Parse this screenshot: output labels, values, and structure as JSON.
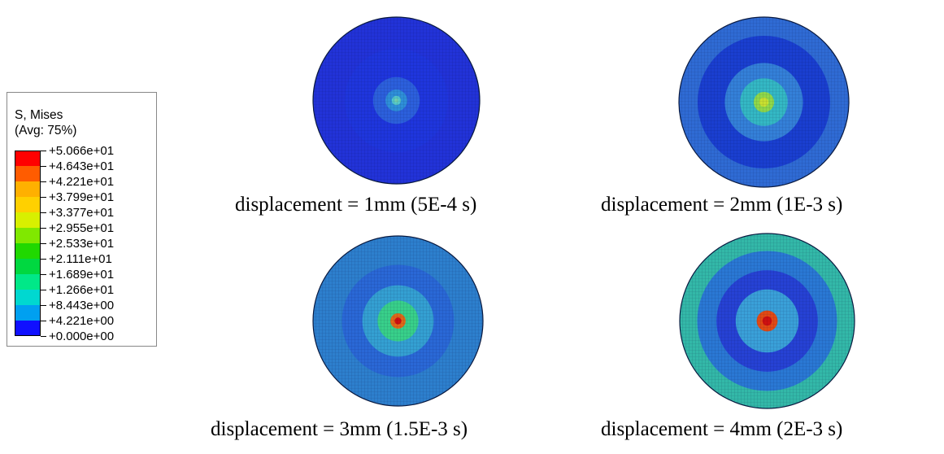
{
  "legend": {
    "title": "S, Mises",
    "subtitle": "(Avg: 75%)",
    "levels": [
      "+5.066e+01",
      "+4.643e+01",
      "+4.221e+01",
      "+3.799e+01",
      "+3.377e+01",
      "+2.955e+01",
      "+2.533e+01",
      "+2.111e+01",
      "+1.689e+01",
      "+1.266e+01",
      "+8.443e+00",
      "+4.221e+00",
      "+0.000e+00"
    ],
    "colors": [
      "#ff0000",
      "#ff5c00",
      "#ffb000",
      "#ffd000",
      "#d8f000",
      "#80e800",
      "#20d800",
      "#00d840",
      "#00e888",
      "#00d8d0",
      "#00a0f0",
      "#0050f0",
      "#1010ff"
    ]
  },
  "plots": [
    {
      "caption": "displacement = 1mm (5E-4 s)",
      "rings": [
        "#2233d8",
        "#1f36dd",
        "#2c60dc",
        "#2e8fd8",
        "#55c8c8"
      ]
    },
    {
      "caption": "displacement = 2mm (1E-3 s)",
      "rings": [
        "#2f6bd4",
        "#1a3fd0",
        "#3480d8",
        "#34b8c4",
        "#8fd84a"
      ]
    },
    {
      "caption": "displacement = 3mm (1.5E-3 s)",
      "rings": [
        "#2d7fcd",
        "#2a68d6",
        "#34a0d2",
        "#38d08a",
        "#e06818"
      ]
    },
    {
      "caption": "displacement = 4mm (2E-3 s)",
      "rings": [
        "#33b8a8",
        "#2a78d4",
        "#2642d4",
        "#3aa0d8",
        "#e24a14"
      ]
    }
  ]
}
